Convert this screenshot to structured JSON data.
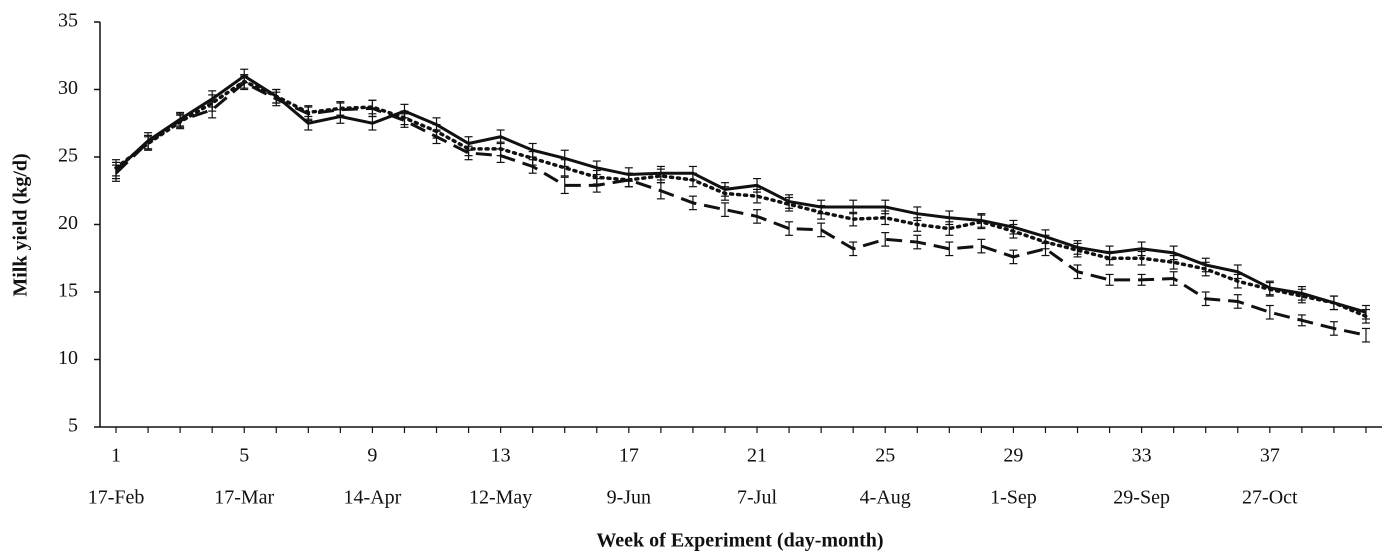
{
  "chart_data": {
    "type": "line",
    "xlabel": "Week of Experiment (day-month)",
    "ylabel": "Milk yield (kg/d)",
    "x": [
      1,
      2,
      3,
      4,
      5,
      6,
      7,
      8,
      9,
      10,
      11,
      12,
      13,
      14,
      15,
      16,
      17,
      18,
      19,
      20,
      21,
      22,
      23,
      24,
      25,
      26,
      27,
      28,
      29,
      30,
      31,
      32,
      33,
      34,
      35,
      36,
      37,
      38,
      39,
      40
    ],
    "xlim": [
      0.5,
      40.5
    ],
    "xticks": [
      1,
      5,
      9,
      13,
      17,
      21,
      25,
      29,
      33,
      37
    ],
    "xtick_dates": [
      "17-Feb",
      "17-Mar",
      "14-Apr",
      "12-May",
      "9-Jun",
      "7-Jul",
      "4-Aug",
      "1-Sep",
      "29-Sep",
      "27-Oct"
    ],
    "ylim": [
      5,
      35
    ],
    "yticks": [
      5,
      10,
      15,
      20,
      25,
      30,
      35
    ],
    "series": [
      {
        "color": "#111111",
        "dash": "solid",
        "values": [
          24.0,
          26.2,
          27.8,
          29.3,
          31.0,
          29.5,
          27.5,
          28.0,
          27.5,
          28.4,
          27.4,
          26.0,
          26.5,
          25.5,
          24.9,
          24.2,
          23.7,
          23.8,
          23.8,
          22.6,
          22.9,
          21.7,
          21.3,
          21.3,
          21.3,
          20.8,
          20.5,
          20.3,
          19.8,
          19.1,
          18.3,
          17.9,
          18.2,
          17.9,
          17.0,
          16.5,
          15.3,
          14.9,
          14.2,
          13.5
        ],
        "errors": [
          0.6,
          0.6,
          0.5,
          0.6,
          0.5,
          0.5,
          0.5,
          0.5,
          0.5,
          0.5,
          0.5,
          0.5,
          0.5,
          0.5,
          0.6,
          0.5,
          0.5,
          0.5,
          0.5,
          0.5,
          0.5,
          0.5,
          0.5,
          0.5,
          0.5,
          0.5,
          0.5,
          0.5,
          0.5,
          0.5,
          0.5,
          0.5,
          0.5,
          0.5,
          0.5,
          0.5,
          0.5,
          0.5,
          0.5,
          0.5
        ]
      },
      {
        "color": "#111111",
        "dash": "dotted",
        "values": [
          24.2,
          26.0,
          27.6,
          29.0,
          30.6,
          29.5,
          28.3,
          28.6,
          28.7,
          27.9,
          26.9,
          25.6,
          25.6,
          24.9,
          24.2,
          23.5,
          23.3,
          23.6,
          23.3,
          22.3,
          22.1,
          21.5,
          20.9,
          20.4,
          20.5,
          20.0,
          19.7,
          20.2,
          19.5,
          18.7,
          18.1,
          17.5,
          17.5,
          17.2,
          16.7,
          15.8,
          15.2,
          14.7,
          14.2,
          13.2
        ],
        "errors": [
          0.6,
          0.5,
          0.5,
          0.6,
          0.5,
          0.5,
          0.5,
          0.5,
          0.5,
          0.5,
          0.5,
          0.5,
          0.5,
          0.5,
          0.6,
          0.5,
          0.5,
          0.5,
          0.5,
          0.5,
          0.5,
          0.5,
          0.5,
          0.5,
          0.5,
          0.5,
          0.5,
          0.5,
          0.5,
          0.5,
          0.5,
          0.5,
          0.5,
          0.5,
          0.5,
          0.5,
          0.5,
          0.5,
          0.5,
          0.5
        ]
      },
      {
        "color": "#111111",
        "dash": "dashed",
        "values": [
          23.8,
          26.1,
          27.7,
          28.5,
          30.5,
          29.3,
          28.2,
          28.5,
          28.6,
          27.7,
          26.5,
          25.3,
          25.1,
          24.3,
          22.9,
          22.9,
          23.3,
          22.5,
          21.6,
          21.1,
          20.6,
          19.7,
          19.6,
          18.2,
          18.9,
          18.7,
          18.2,
          18.4,
          17.6,
          18.2,
          16.5,
          15.9,
          15.9,
          16.0,
          14.5,
          14.3,
          13.5,
          12.9,
          12.3,
          11.8
        ],
        "errors": [
          0.6,
          0.5,
          0.5,
          0.6,
          0.5,
          0.5,
          0.5,
          0.5,
          0.6,
          0.5,
          0.5,
          0.5,
          0.5,
          0.5,
          0.6,
          0.5,
          0.5,
          0.6,
          0.5,
          0.5,
          0.5,
          0.5,
          0.5,
          0.5,
          0.5,
          0.5,
          0.5,
          0.5,
          0.5,
          0.5,
          0.5,
          0.4,
          0.4,
          0.5,
          0.5,
          0.5,
          0.5,
          0.4,
          0.5,
          0.5
        ]
      }
    ]
  }
}
